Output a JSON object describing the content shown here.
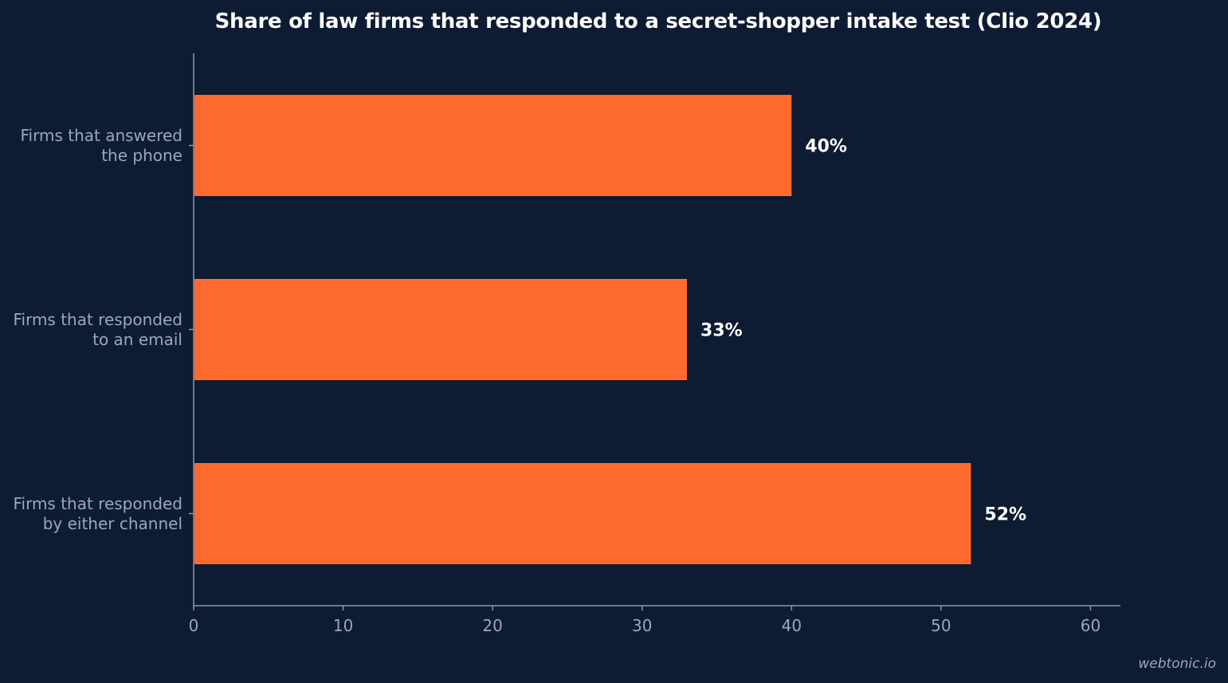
{
  "chart_data": {
    "type": "bar",
    "orientation": "horizontal",
    "title": "Share of law firms that responded to a secret-shopper intake test (Clio 2024)",
    "categories": [
      [
        "Firms that answered",
        "the phone"
      ],
      [
        "Firms that responded",
        "to an email"
      ],
      [
        "Firms that responded",
        "by either channel"
      ]
    ],
    "values": [
      40,
      33,
      52
    ],
    "value_labels": [
      "40%",
      "33%",
      "52%"
    ],
    "xlabel": "",
    "ylabel": "",
    "xlim": [
      0,
      62
    ],
    "xticks": [
      0,
      10,
      20,
      30,
      40,
      50,
      60
    ],
    "grid": false,
    "legend": "none"
  },
  "colors": {
    "background": "#0d1b33",
    "bar": "#ff6b2e",
    "axis": "#8c97ab",
    "tick_label": "#9aa7bd",
    "value_label": "#ffffff",
    "title": "#ffffff"
  },
  "watermark": "webtonic.io"
}
